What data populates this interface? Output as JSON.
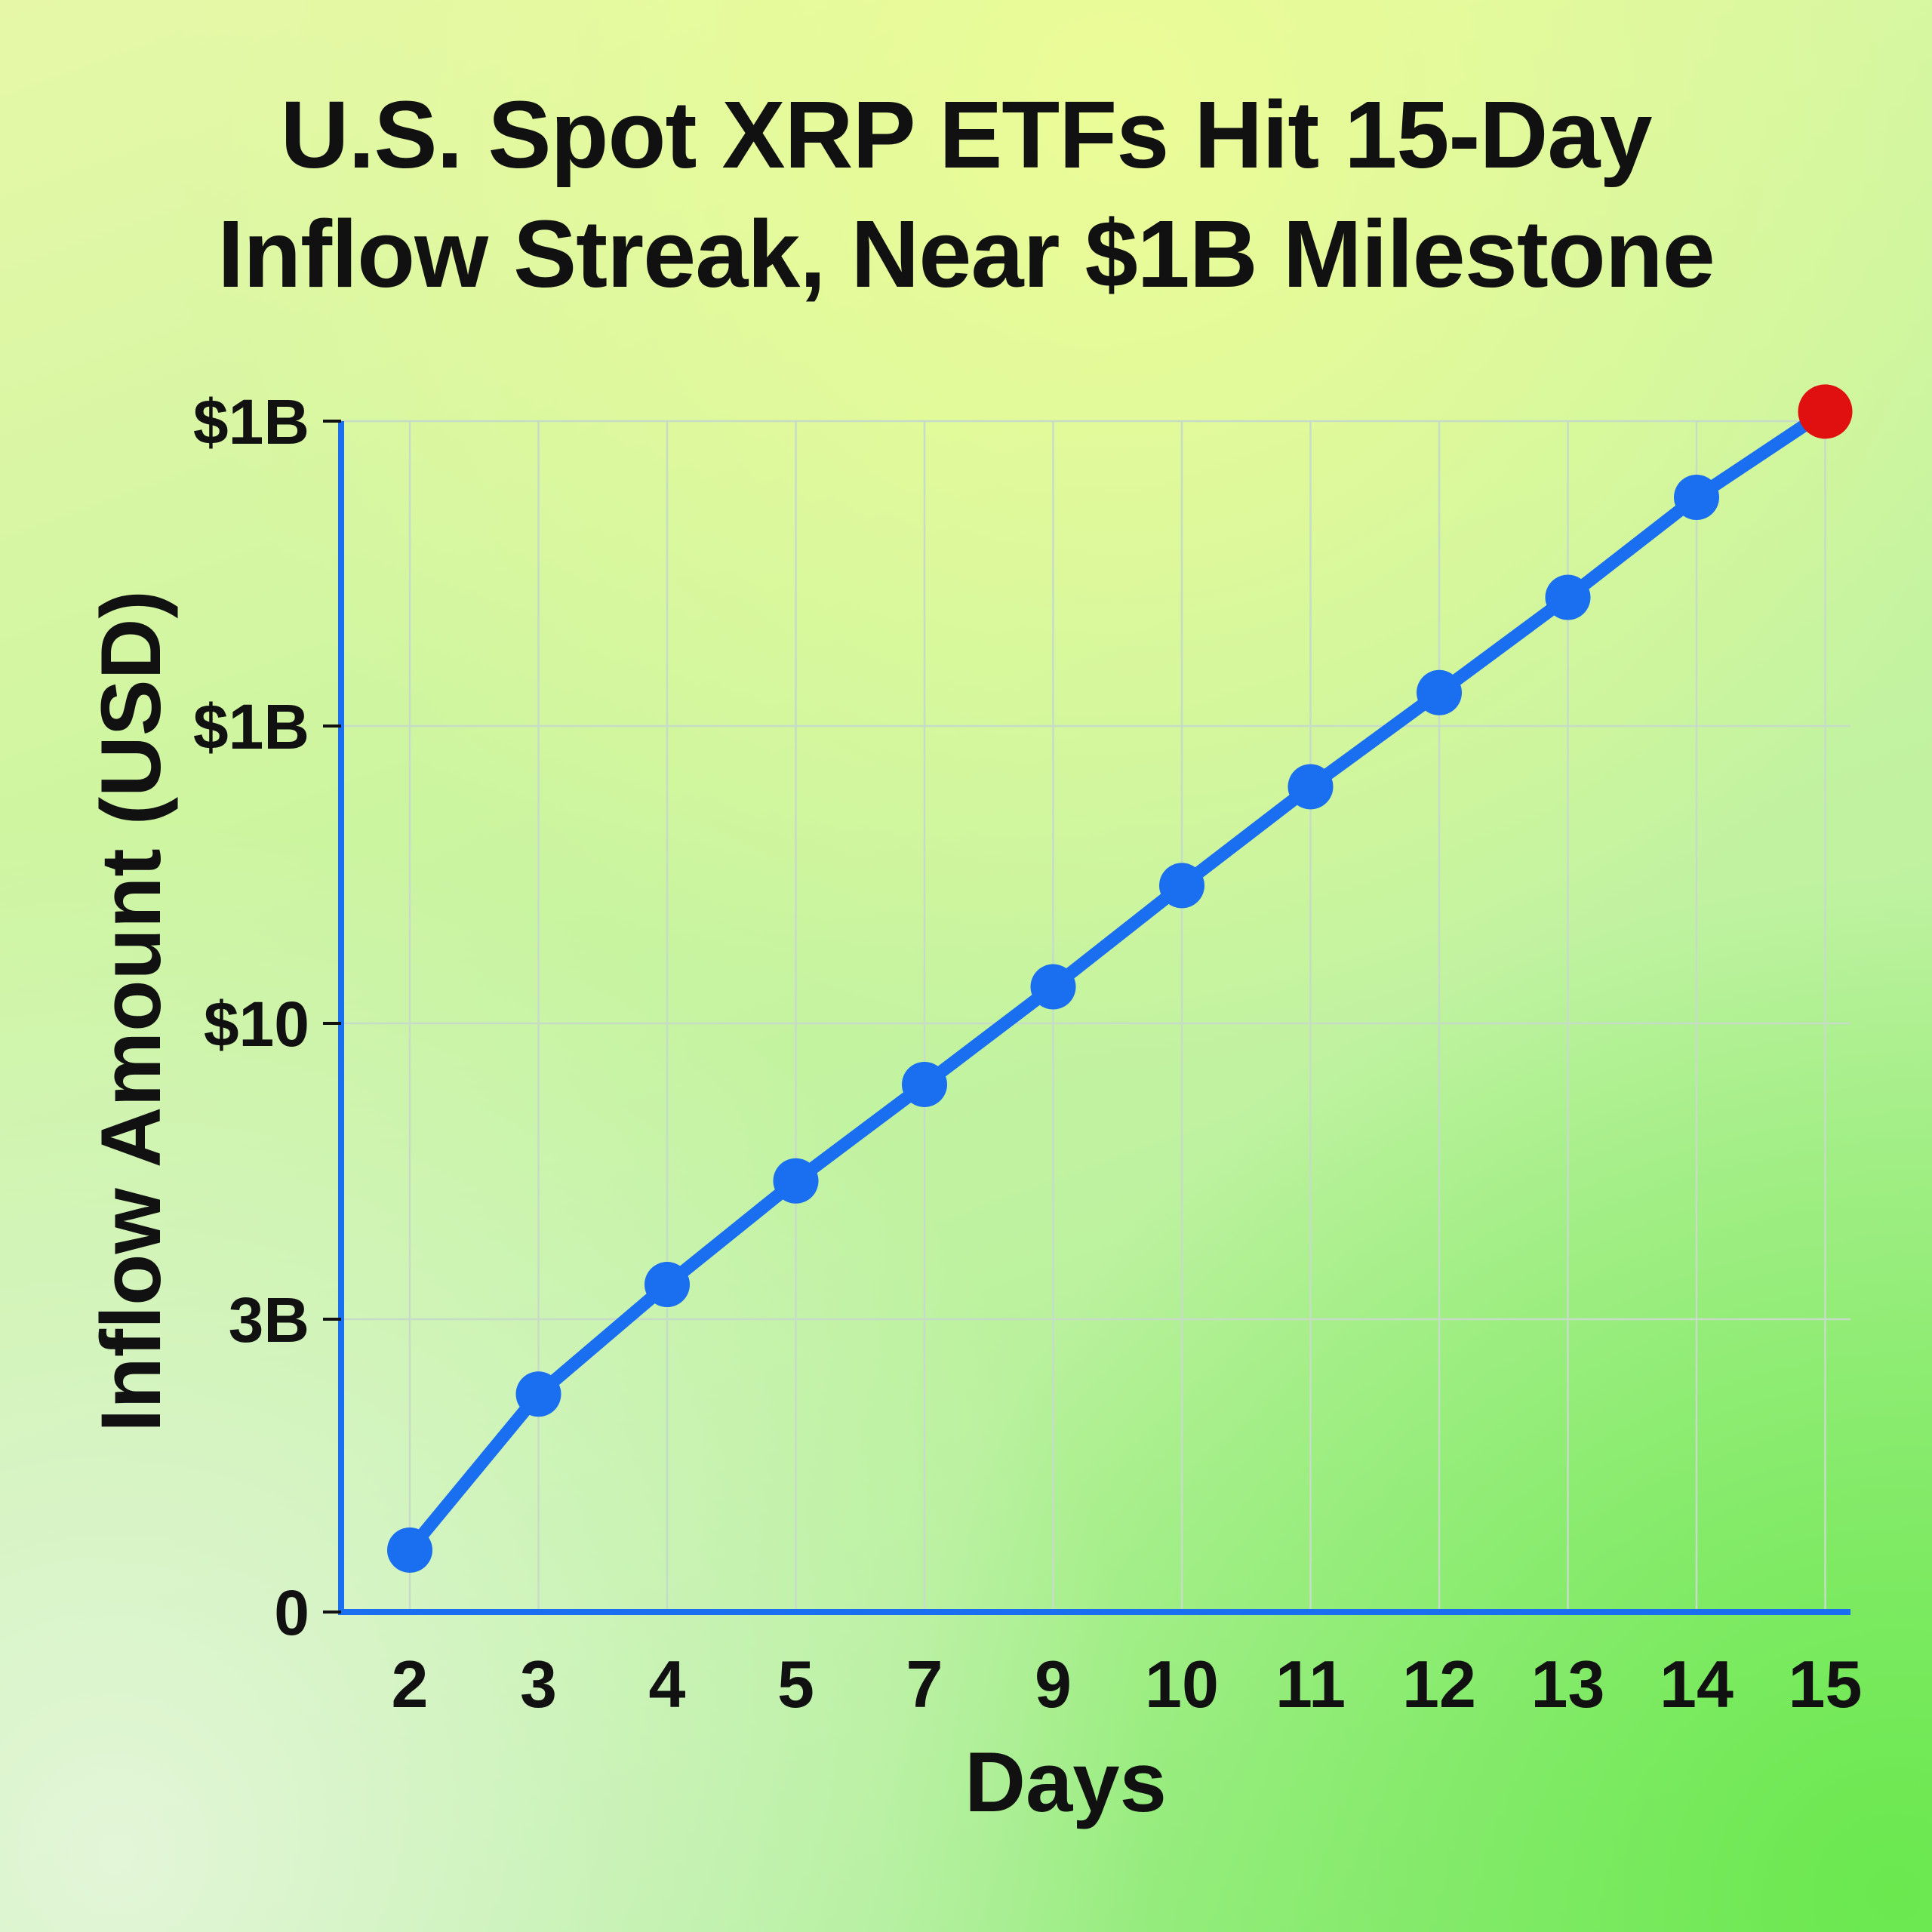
{
  "chart_data": {
    "type": "line",
    "title_lines": [
      "U.S. Spot XRP ETFs Hit 15-Day",
      "Inflow Streak, Near $1B Milestone"
    ],
    "xlabel": "Days",
    "ylabel": "Inflow Amount (USD)",
    "categories": [
      "2",
      "3",
      "4",
      "5",
      "7",
      "9",
      "10",
      "11",
      "12",
      "13",
      "14",
      "15"
    ],
    "y_tick_labels": [
      "0",
      "3B",
      "$10",
      "$1B",
      "$1B"
    ],
    "ylim": [
      0,
      1000
    ],
    "grid": true,
    "series": [
      {
        "values": [
          52,
          183,
          275,
          362,
          443,
          525,
          610,
          693,
          772,
          852,
          936,
          1008
        ],
        "color": "#1a6ef0",
        "highlight_last_color": "#e01010"
      }
    ],
    "colors": {
      "axis": "#1a6ef0",
      "grid": "#c6dcc6",
      "text": "#111111"
    }
  }
}
